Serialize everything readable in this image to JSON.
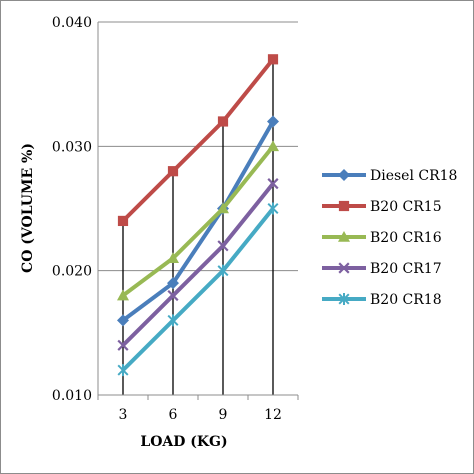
{
  "chart_data": {
    "type": "line",
    "title": "",
    "xlabel": "LOAD (KG)",
    "ylabel": "CO (VOLUME %)",
    "categories": [
      "3",
      "6",
      "9",
      "12"
    ],
    "yticks": [
      "0.010",
      "0.020",
      "0.030",
      "0.040"
    ],
    "ylim": [
      0.01,
      0.04
    ],
    "grid": "horizontal",
    "drop_lines": true,
    "legend_position": "right",
    "series": [
      {
        "name": "Diesel CR18",
        "color": "#4a7ebb",
        "marker": "diamond",
        "values": [
          0.016,
          0.019,
          0.025,
          0.032
        ]
      },
      {
        "name": "B20 CR15",
        "color": "#be4b48",
        "marker": "square",
        "values": [
          0.024,
          0.028,
          0.032,
          0.037
        ]
      },
      {
        "name": "B20 CR16",
        "color": "#98b954",
        "marker": "triangle",
        "values": [
          0.018,
          0.021,
          0.025,
          0.03
        ]
      },
      {
        "name": "B20 CR17",
        "color": "#7d60a0",
        "marker": "x",
        "values": [
          0.014,
          0.018,
          0.022,
          0.027
        ]
      },
      {
        "name": "B20 CR18",
        "color": "#46aac4",
        "marker": "star",
        "values": [
          0.012,
          0.016,
          0.02,
          0.025
        ]
      }
    ]
  }
}
